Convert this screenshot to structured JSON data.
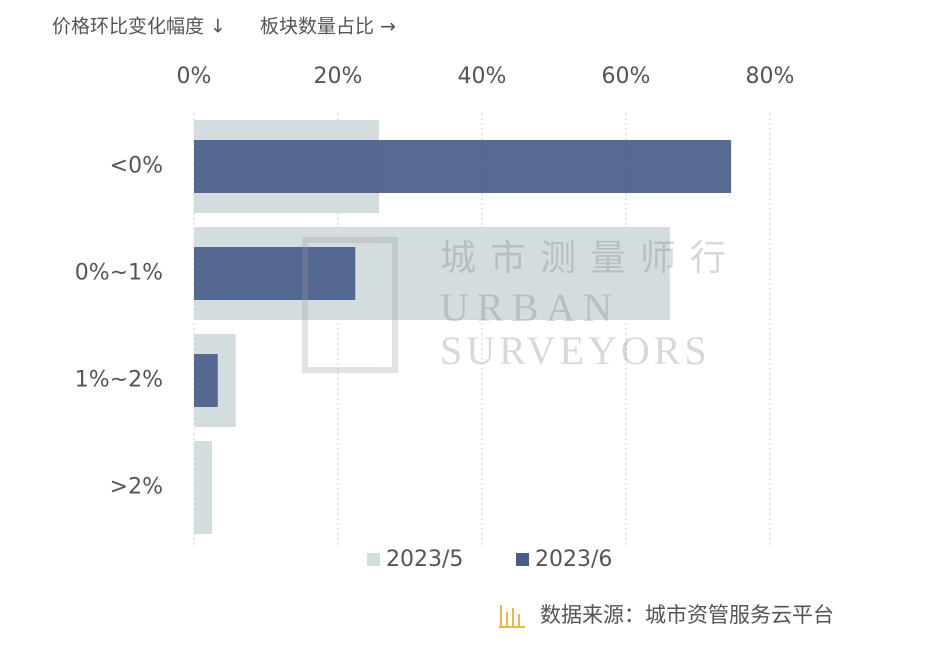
{
  "chart_data": {
    "type": "barh",
    "axis_note_y": "价格环比变化幅度 ↓",
    "axis_note_x": "板块数量占比 →",
    "categories": [
      "<0%",
      "0%~1%",
      "1%~2%",
      ">2%"
    ],
    "series": [
      {
        "name": "2023/5",
        "color": "#d3dcdf",
        "values": [
          25.7,
          66.1,
          5.8,
          2.5
        ]
      },
      {
        "name": "2023/6",
        "color": "#4a5d8a",
        "values": [
          74.6,
          22.4,
          3.3,
          0
        ]
      }
    ],
    "xlim": [
      0,
      80
    ],
    "xticks": [
      {
        "value": 0,
        "label": "0%"
      },
      {
        "value": 20,
        "label": "20%"
      },
      {
        "value": 40,
        "label": "40%"
      },
      {
        "value": 60,
        "label": "60%"
      },
      {
        "value": 80,
        "label": "80%"
      }
    ],
    "grid": true,
    "watermark": {
      "cn": "城市测量师行",
      "en1": "URBAN",
      "en2": "SURVEYORS"
    },
    "source": "数据来源：城市资管服务云平台"
  }
}
